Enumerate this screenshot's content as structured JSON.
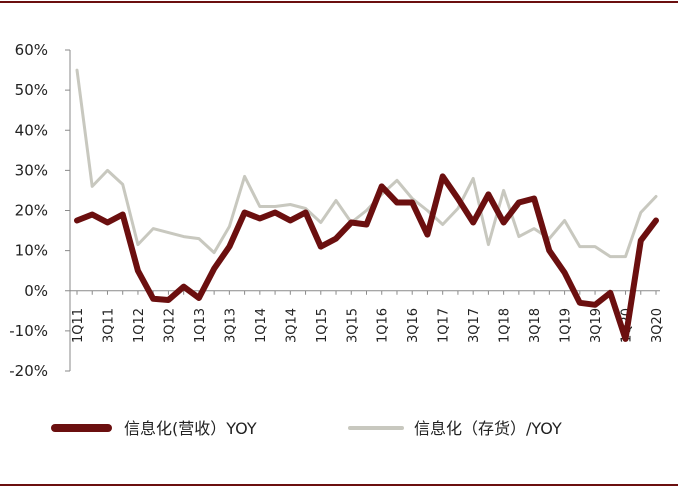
{
  "colors": {
    "revenue": "#6b0f0f",
    "inventory": "#c8c8bf",
    "axis": "#8a8a8a",
    "rule": "#6b0f0f"
  },
  "chart_data": {
    "type": "line",
    "title": "",
    "xlabel": "",
    "ylabel": "",
    "ylim": [
      -20,
      60
    ],
    "y_tick_labels": [
      "-20%",
      "-10%",
      "0%",
      "10%",
      "20%",
      "30%",
      "40%",
      "50%",
      "60%"
    ],
    "y_ticks": [
      -20,
      -10,
      0,
      10,
      20,
      30,
      40,
      50,
      60
    ],
    "grid": false,
    "legend_position": "bottom",
    "categories": [
      "1Q11",
      "2Q11",
      "3Q11",
      "4Q11",
      "1Q12",
      "2Q12",
      "3Q12",
      "4Q12",
      "1Q13",
      "2Q13",
      "3Q13",
      "4Q13",
      "1Q14",
      "2Q14",
      "3Q14",
      "4Q14",
      "1Q15",
      "2Q15",
      "3Q15",
      "4Q15",
      "1Q16",
      "2Q16",
      "3Q16",
      "4Q16",
      "1Q17",
      "2Q17",
      "3Q17",
      "4Q17",
      "1Q18",
      "2Q18",
      "3Q18",
      "4Q18",
      "1Q19",
      "2Q19",
      "3Q19",
      "4Q19",
      "1Q20",
      "2Q20",
      "3Q20"
    ],
    "x_tick_labels": [
      "1Q11",
      "3Q11",
      "1Q12",
      "3Q12",
      "1Q13",
      "3Q13",
      "1Q14",
      "3Q14",
      "1Q15",
      "3Q15",
      "1Q16",
      "3Q16",
      "1Q17",
      "3Q17",
      "1Q18",
      "3Q18",
      "1Q19",
      "3Q19",
      "1Q20",
      "3Q20"
    ],
    "series": [
      {
        "name": "信息化(营收）YOY",
        "color": "#6b0f0f",
        "values": [
          17.5,
          19,
          17,
          19,
          5,
          -2,
          -2.3,
          1,
          -1.8,
          5.5,
          11,
          19.5,
          18,
          19.5,
          17.5,
          19.5,
          11,
          13,
          17,
          16.5,
          26,
          22,
          22,
          14,
          28.5,
          23,
          17,
          24,
          17,
          22,
          23,
          10,
          4.5,
          -3,
          -3.5,
          -0.5,
          -12,
          12.5,
          17.5
        ]
      },
      {
        "name": "信息化（存货）/YOY",
        "color": "#c8c8bf",
        "values": [
          55,
          26,
          30,
          26.5,
          11.5,
          15.5,
          14.5,
          13.5,
          13,
          9.5,
          16,
          28.5,
          21,
          21,
          21.5,
          20.5,
          17,
          22.5,
          17,
          20,
          24,
          27.5,
          23,
          20,
          16.5,
          20.5,
          28,
          11.5,
          25,
          13.5,
          15.5,
          13,
          17.5,
          11,
          11,
          8.5,
          8.5,
          19.5,
          23.5
        ]
      }
    ]
  }
}
